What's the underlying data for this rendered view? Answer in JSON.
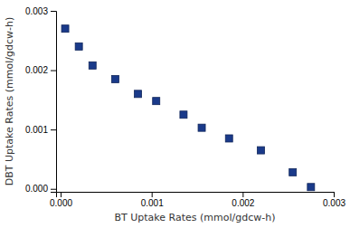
{
  "chart_data": {
    "type": "scatter",
    "x": [
      5e-05,
      0.0002,
      0.00035,
      0.0006,
      0.00085,
      0.00105,
      0.00135,
      0.00155,
      0.00185,
      0.0022,
      0.00255,
      0.00275
    ],
    "y": [
      0.0027,
      0.0024,
      0.00208,
      0.00185,
      0.0016,
      0.00148,
      0.00125,
      0.00103,
      0.00085,
      0.00065,
      0.00028,
      3e-05
    ],
    "xlabel": "BT Uptake Rates (mmol/gdcw-h)",
    "ylabel": "DBT Uptake Rates (mmol/gdcw-h)",
    "xlim": [
      -5e-05,
      0.003
    ],
    "ylim": [
      -5e-05,
      0.003
    ],
    "xticks": [
      {
        "value": 0.0,
        "label": "0.000"
      },
      {
        "value": 0.001,
        "label": "0.001"
      },
      {
        "value": 0.002,
        "label": "0.002"
      },
      {
        "value": 0.003,
        "label": "0.003"
      }
    ],
    "yticks": [
      {
        "value": 0.0,
        "label": "0.000"
      },
      {
        "value": 0.001,
        "label": "0.001"
      },
      {
        "value": 0.002,
        "label": "0.002"
      },
      {
        "value": 0.003,
        "label": "0.003"
      }
    ],
    "color": "#1a3a8a",
    "marker": "square",
    "grid": false
  }
}
